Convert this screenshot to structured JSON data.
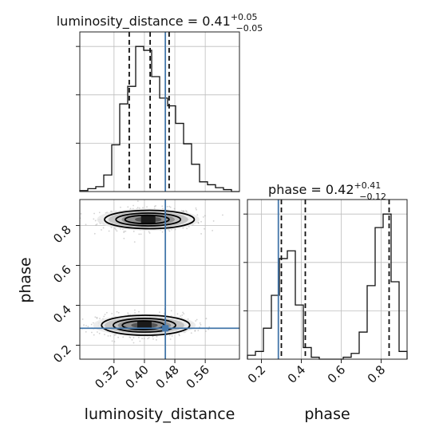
{
  "truth_color": "#4477aa",
  "chart_data": {
    "type": "corner",
    "parameters": [
      "luminosity_distance",
      "phase"
    ],
    "axis_labels": {
      "x1": "luminosity_distance",
      "x2": "phase",
      "y2": "phase"
    },
    "grid": true,
    "truth": {
      "luminosity_distance": 0.455,
      "phase": 0.285
    },
    "luminosity_distance": {
      "title_prefix": "luminosity_distance = ",
      "median": "0.41",
      "plus": "+0.05",
      "minus": "−0.05",
      "quantiles": [
        0.36,
        0.415,
        0.465
      ],
      "range": [
        0.23,
        0.65
      ],
      "ticks": [
        0.32,
        0.4,
        0.48,
        0.56
      ],
      "tick_labels": [
        "0.32",
        "0.40",
        "0.48",
        "0.56"
      ],
      "hist_edges": [
        0.23,
        0.251,
        0.272,
        0.293,
        0.314,
        0.335,
        0.356,
        0.377,
        0.398,
        0.419,
        0.44,
        0.461,
        0.482,
        0.503,
        0.524,
        0.545,
        0.566,
        0.587,
        0.608,
        0.629,
        0.65
      ],
      "hist_counts": [
        1,
        3,
        5,
        17,
        48,
        90,
        108,
        149,
        145,
        118,
        96,
        88,
        70,
        49,
        28,
        10,
        7,
        4,
        2,
        0
      ]
    },
    "phase": {
      "title_prefix": "phase = ",
      "median": "0.42",
      "plus": "+0.41",
      "minus": "−0.12",
      "quantiles": [
        0.3,
        0.42,
        0.84
      ],
      "range": [
        0.13,
        0.93
      ],
      "ticks": [
        0.2,
        0.4,
        0.6,
        0.8
      ],
      "tick_labels": [
        "0.2",
        "0.4",
        "0.6",
        "0.8"
      ],
      "hist_edges": [
        0.13,
        0.17,
        0.21,
        0.25,
        0.29,
        0.33,
        0.37,
        0.41,
        0.45,
        0.49,
        0.53,
        0.57,
        0.61,
        0.65,
        0.69,
        0.73,
        0.77,
        0.81,
        0.85,
        0.89,
        0.93
      ],
      "hist_counts": [
        2,
        4,
        16,
        33,
        52,
        56,
        28,
        6,
        1,
        0,
        0,
        0,
        1,
        3,
        14,
        38,
        68,
        75,
        40,
        4
      ]
    },
    "joint": {
      "x_param": "luminosity_distance",
      "y_param": "phase",
      "modes": [
        {
          "x": 0.41,
          "y": 0.83,
          "contours": [
            [
              0.058,
              0.021
            ],
            [
              0.085,
              0.032
            ],
            [
              0.118,
              0.046
            ]
          ]
        },
        {
          "x": 0.4,
          "y": 0.3,
          "contours": [
            [
              0.055,
              0.022
            ],
            [
              0.082,
              0.034
            ],
            [
              0.116,
              0.05
            ]
          ]
        }
      ]
    }
  }
}
